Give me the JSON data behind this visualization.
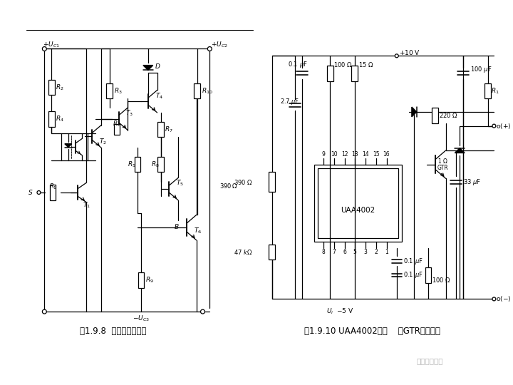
{
  "bg_color": "#ffffff",
  "fig_width": 7.2,
  "fig_height": 5.4,
  "dpi": 100,
  "caption_left": "图1.9.8  双电源驱动电路",
  "caption_right": "图1.9.10 UAA4002组成    的GTR驱动电路",
  "watermark": "电力知识课堂",
  "lw": 0.9
}
